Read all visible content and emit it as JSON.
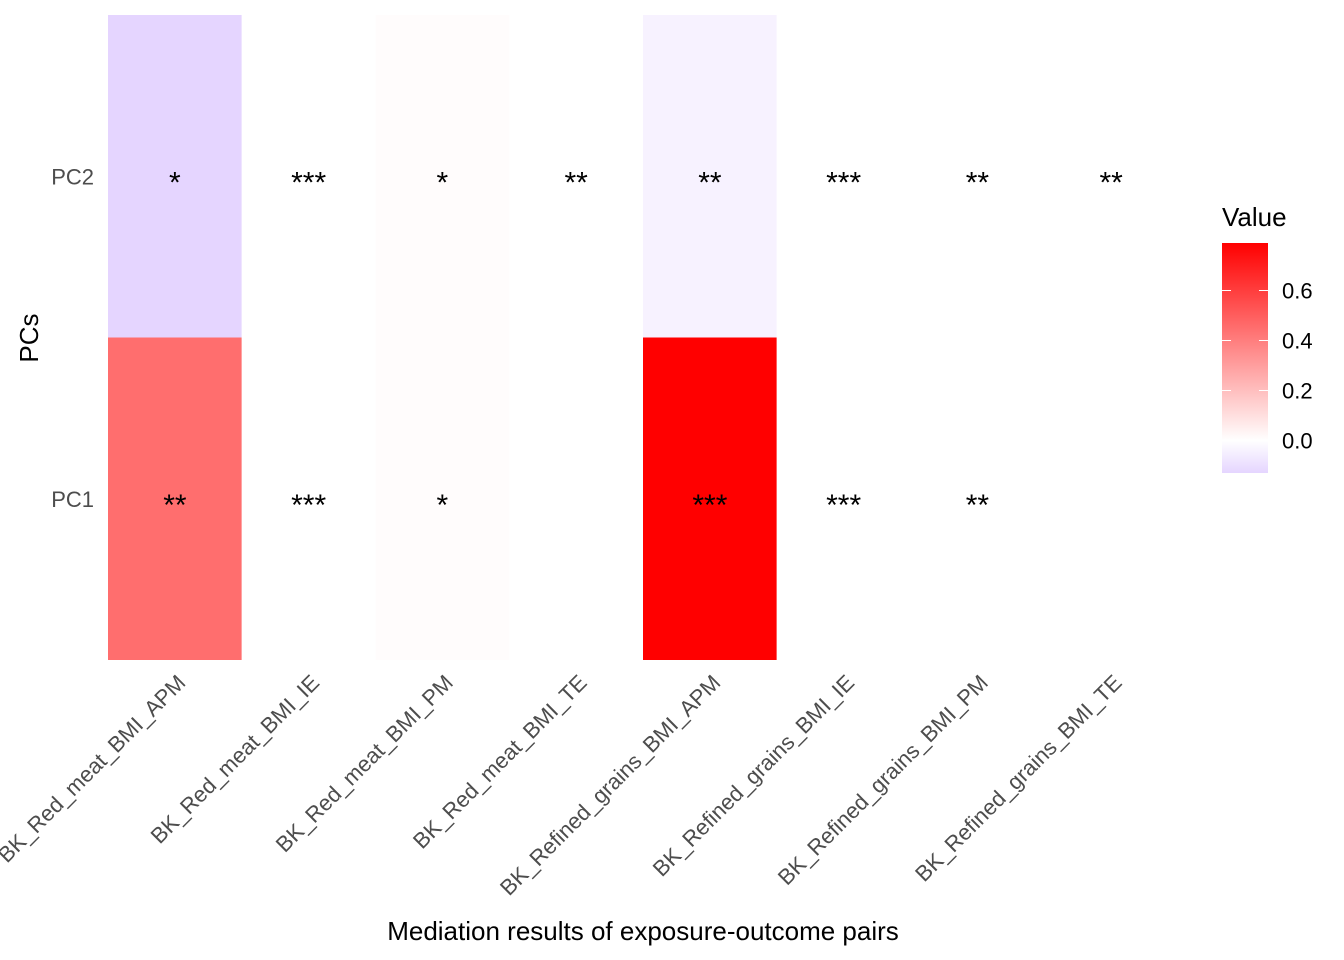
{
  "chart_data": {
    "type": "heatmap",
    "xlabel": "Mediation results of exposure-outcome pairs",
    "ylabel": "PCs",
    "x_categories": [
      "BK_Red_meat_BMI_APM",
      "BK_Red_meat_BMI_IE",
      "BK_Red_meat_BMI_PM",
      "BK_Red_meat_BMI_TE",
      "BK_Refined_grains_BMI_APM",
      "BK_Refined_grains_BMI_IE",
      "BK_Refined_grains_BMI_PM",
      "BK_Refined_grains_BMI_TE"
    ],
    "y_categories": [
      "PC1",
      "PC2"
    ],
    "values": {
      "PC1": [
        0.45,
        0.0,
        0.01,
        0.0,
        0.79,
        0.0,
        0.0,
        0.0
      ],
      "PC2": [
        -0.13,
        0.0,
        0.01,
        0.0,
        -0.04,
        0.0,
        0.0,
        0.0
      ]
    },
    "annotations": {
      "PC1": [
        "**",
        "***",
        "*",
        "",
        "***",
        "***",
        "**",
        ""
      ],
      "PC2": [
        "*",
        "***",
        "*",
        "**",
        "**",
        "***",
        "**",
        "**"
      ]
    },
    "legend": {
      "title": "Value",
      "ticks": [
        "0.0",
        "0.2",
        "0.4",
        "0.6"
      ],
      "min": -0.13,
      "max": 0.79,
      "low_color": "#e5d5ff",
      "mid_color": "#ffffff",
      "high_color": "#ff0000",
      "placement": "right"
    },
    "grid": false
  }
}
